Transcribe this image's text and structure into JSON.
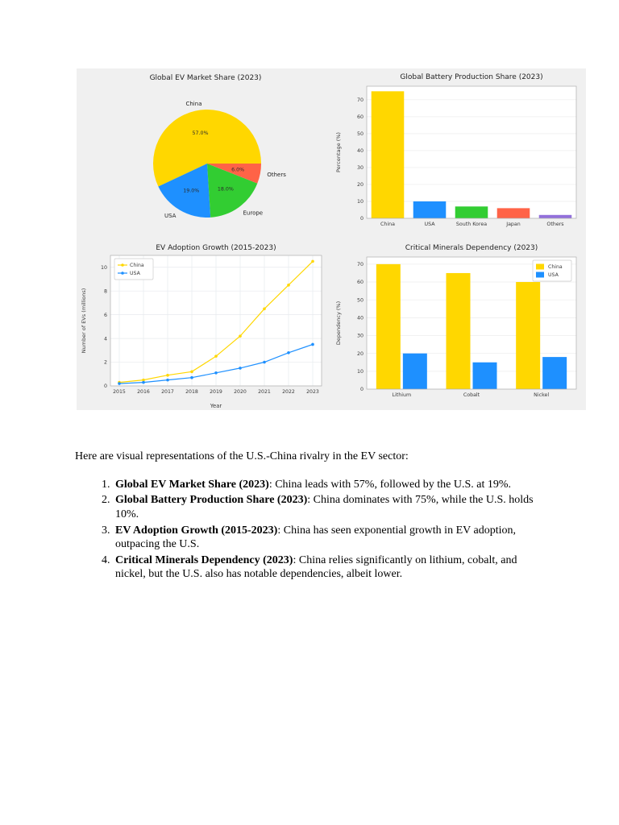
{
  "text": {
    "intro": "Here are visual representations of the U.S.-China rivalry in the EV sector:",
    "items": [
      {
        "bold": "Global EV Market Share (2023)",
        "rest": ": China leads with 57%, followed by the U.S. at 19%."
      },
      {
        "bold": "Global Battery Production Share (2023)",
        "rest": ": China dominates with 75%, while the U.S. holds 10%."
      },
      {
        "bold": "EV Adoption Growth (2015-2023)",
        "rest": ": China has seen exponential growth in EV adoption, outpacing the U.S."
      },
      {
        "bold": "Critical Minerals Dependency (2023)",
        "rest": ": China relies significantly on lithium, cobalt, and nickel, but the U.S. also has notable dependencies, albeit lower."
      }
    ]
  },
  "colors": {
    "china": "#FFD700",
    "usa": "#1E90FF",
    "europe": "#32CD32",
    "japan": "#FF6347",
    "others": "#9370DB",
    "figure_bg": "#f0f0f0"
  },
  "chart_data": [
    {
      "type": "pie",
      "title": "Global EV Market Share (2023)",
      "labels": [
        "China",
        "USA",
        "Europe",
        "Others"
      ],
      "values": [
        57,
        19,
        18,
        6
      ],
      "pct_labels": [
        "57.0%",
        "19.0%",
        "18.0%",
        "6.0%"
      ],
      "colors": [
        "#FFD700",
        "#1E90FF",
        "#32CD32",
        "#FF6347"
      ]
    },
    {
      "type": "bar",
      "title": "Global Battery Production Share (2023)",
      "categories": [
        "China",
        "USA",
        "South Korea",
        "Japan",
        "Others"
      ],
      "values": [
        75,
        10,
        7,
        6,
        2
      ],
      "colors": [
        "#FFD700",
        "#1E90FF",
        "#32CD32",
        "#FF6347",
        "#9370DB"
      ],
      "ylabel": "Percentage (%)",
      "ylim": [
        0,
        78
      ],
      "yticks": [
        0,
        10,
        20,
        30,
        40,
        50,
        60,
        70
      ],
      "grid": true
    },
    {
      "type": "line",
      "title": "EV Adoption Growth (2015-2023)",
      "x": [
        2015,
        2016,
        2017,
        2018,
        2019,
        2020,
        2021,
        2022,
        2023
      ],
      "series": [
        {
          "name": "China",
          "color": "#FFD700",
          "values": [
            0.3,
            0.5,
            0.9,
            1.2,
            2.5,
            4.2,
            6.5,
            8.5,
            10.5
          ]
        },
        {
          "name": "USA",
          "color": "#1E90FF",
          "values": [
            0.2,
            0.3,
            0.5,
            0.7,
            1.1,
            1.5,
            2.0,
            2.8,
            3.5
          ]
        }
      ],
      "xlabel": "Year",
      "ylabel": "Number of EVs (millions)",
      "ylim": [
        0,
        11
      ],
      "yticks": [
        0,
        2,
        4,
        6,
        8,
        10
      ],
      "legend_position": "upper left",
      "grid": true
    },
    {
      "type": "grouped_bar",
      "title": "Critical Minerals Dependency (2023)",
      "categories": [
        "Lithium",
        "Cobalt",
        "Nickel"
      ],
      "series": [
        {
          "name": "China",
          "color": "#FFD700",
          "values": [
            70,
            65,
            60
          ]
        },
        {
          "name": "USA",
          "color": "#1E90FF",
          "values": [
            20,
            15,
            18
          ]
        }
      ],
      "ylabel": "Dependency (%)",
      "ylim": [
        0,
        74
      ],
      "yticks": [
        0,
        10,
        20,
        30,
        40,
        50,
        60,
        70
      ],
      "legend_position": "upper right",
      "grid": true
    }
  ]
}
